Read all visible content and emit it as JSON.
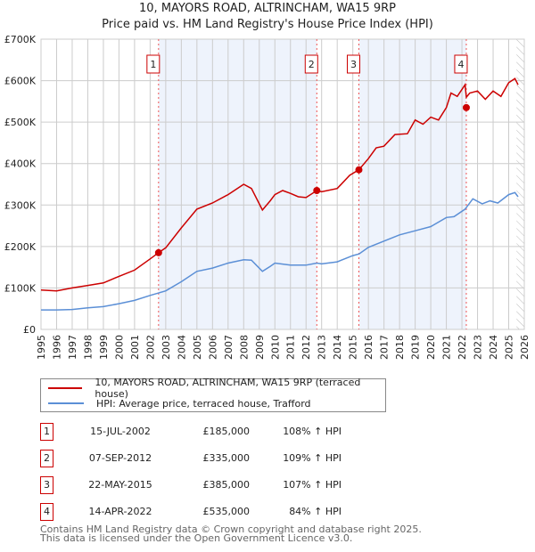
{
  "title_line1": "10, MAYORS ROAD, ALTRINCHAM, WA15 9RP",
  "title_line2": "Price paid vs. HM Land Registry's House Price Index (HPI)",
  "legend": {
    "property": "10, MAYORS ROAD, ALTRINCHAM, WA15 9RP (terraced house)",
    "hpi": "HPI: Average price, terraced house, Trafford"
  },
  "sales": [
    {
      "num": "1",
      "date": "15-JUL-2002",
      "price": "£185,000",
      "hpi": "108% ↑ HPI"
    },
    {
      "num": "2",
      "date": "07-SEP-2012",
      "price": "£335,000",
      "hpi": "109% ↑ HPI"
    },
    {
      "num": "3",
      "date": "22-MAY-2015",
      "price": "£385,000",
      "hpi": "107% ↑ HPI"
    },
    {
      "num": "4",
      "date": "14-APR-2022",
      "price": "£535,000",
      "hpi": "84% ↑ HPI"
    }
  ],
  "footer": {
    "line1": "Contains HM Land Registry data © Crown copyright and database right 2025.",
    "line2": "This data is licensed under the Open Government Licence v3.0."
  },
  "colors": {
    "property": "#cc0000",
    "hpi": "#5b8fd6",
    "shade": "#eef3fc"
  },
  "chart_data": {
    "type": "line",
    "xlim": [
      1995,
      2026
    ],
    "ylim": [
      0,
      700000
    ],
    "x_ticks": [
      "1995",
      "1996",
      "1997",
      "1998",
      "1999",
      "2000",
      "2001",
      "2002",
      "2003",
      "2004",
      "2005",
      "2006",
      "2007",
      "2008",
      "2009",
      "2010",
      "2011",
      "2012",
      "2013",
      "2014",
      "2015",
      "2016",
      "2017",
      "2018",
      "2019",
      "2020",
      "2021",
      "2022",
      "2023",
      "2024",
      "2025",
      "2026"
    ],
    "y_ticks": [
      {
        "v": 0,
        "label": "£0"
      },
      {
        "v": 100000,
        "label": "£100K"
      },
      {
        "v": 200000,
        "label": "£200K"
      },
      {
        "v": 300000,
        "label": "£300K"
      },
      {
        "v": 400000,
        "label": "£400K"
      },
      {
        "v": 500000,
        "label": "£500K"
      },
      {
        "v": 600000,
        "label": "£600K"
      },
      {
        "v": 700000,
        "label": "£700K"
      }
    ],
    "sale_points": [
      {
        "label": "1",
        "x": 2002.54,
        "y": 185000
      },
      {
        "label": "2",
        "x": 2012.69,
        "y": 335000
      },
      {
        "label": "3",
        "x": 2015.39,
        "y": 385000
      },
      {
        "label": "4",
        "x": 2022.28,
        "y": 535000
      }
    ],
    "shaded_ranges": [
      [
        2002.54,
        2012.69
      ],
      [
        2015.39,
        2022.28
      ]
    ],
    "forecast_from": 2025.5,
    "series": [
      {
        "name": "10, MAYORS ROAD, ALTRINCHAM, WA15 9RP (terraced house)",
        "x": [
          1995,
          1996,
          1997,
          1998,
          1999,
          2000,
          2001,
          2002,
          2002.54,
          2003,
          2004,
          2005,
          2006,
          2007,
          2008,
          2008.5,
          2009.2,
          2009.7,
          2010,
          2010.5,
          2011,
          2011.5,
          2012,
          2012.69,
          2013,
          2014,
          2014.8,
          2015.39,
          2016,
          2016.5,
          2017,
          2017.7,
          2018.5,
          2019,
          2019.5,
          2020,
          2020.5,
          2021,
          2021.3,
          2021.7,
          2022.2,
          2022.28,
          2022.5,
          2023,
          2023.5,
          2024,
          2024.5,
          2025,
          2025.4,
          2025.6
        ],
        "y": [
          95000,
          93000,
          100000,
          106000,
          112000,
          128000,
          143000,
          170000,
          185000,
          197000,
          245000,
          290000,
          305000,
          325000,
          350000,
          340000,
          288000,
          310000,
          325000,
          335000,
          328000,
          320000,
          318000,
          335000,
          332000,
          340000,
          372000,
          385000,
          412000,
          438000,
          442000,
          470000,
          472000,
          505000,
          495000,
          512000,
          505000,
          535000,
          570000,
          562000,
          590000,
          560000,
          570000,
          575000,
          555000,
          575000,
          562000,
          595000,
          605000,
          590000
        ]
      },
      {
        "name": "HPI: Average price, terraced house, Trafford",
        "x": [
          1995,
          1996,
          1997,
          1998,
          1999,
          2000,
          2001,
          2002,
          2003,
          2004,
          2005,
          2006,
          2007,
          2008,
          2008.5,
          2009.2,
          2009.7,
          2010,
          2011,
          2012,
          2012.69,
          2013,
          2014,
          2015,
          2015.4,
          2016,
          2017,
          2018,
          2019,
          2020,
          2021,
          2021.5,
          2022.2,
          2022.7,
          2023.3,
          2023.8,
          2024.3,
          2025,
          2025.4,
          2025.6
        ],
        "y": [
          47000,
          47000,
          48000,
          52000,
          55000,
          62000,
          70000,
          82000,
          93000,
          115000,
          140000,
          148000,
          160000,
          168000,
          167000,
          140000,
          152000,
          160000,
          155000,
          155000,
          160000,
          158000,
          163000,
          178000,
          182000,
          198000,
          213000,
          228000,
          238000,
          248000,
          270000,
          272000,
          290000,
          315000,
          303000,
          310000,
          305000,
          325000,
          330000,
          320000
        ]
      }
    ]
  }
}
